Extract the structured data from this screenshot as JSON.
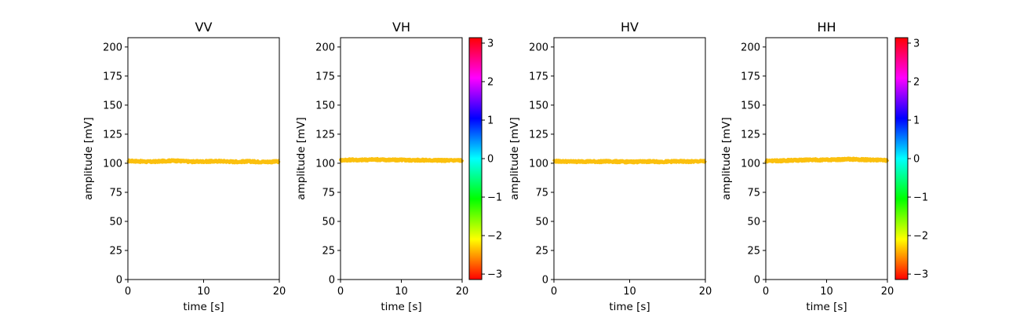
{
  "figure": {
    "background": "#ffffff",
    "trace_color": "#fbc00e"
  },
  "chart_data": [
    {
      "type": "line",
      "title": "VV",
      "xlabel": "time [s]",
      "ylabel": "amplitude [mV]",
      "xlim": [
        0,
        20
      ],
      "ylim": [
        0,
        208
      ],
      "xticks": [
        0,
        10,
        20
      ],
      "yticks": [
        0,
        25,
        50,
        75,
        100,
        125,
        150,
        175,
        200
      ],
      "grid": false,
      "series": [
        {
          "x": [
            0,
            1,
            2,
            3,
            4,
            5,
            6,
            7,
            8,
            9,
            10,
            11,
            12,
            13,
            14,
            15,
            16,
            17,
            18,
            19,
            20
          ],
          "values": [
            102,
            101.8,
            101.5,
            101.3,
            101.6,
            102,
            102.2,
            101.9,
            101.5,
            101.4,
            101.5,
            101.6,
            101.8,
            101.6,
            101.3,
            101.4,
            101.6,
            101.3,
            101.2,
            101.3,
            101.5
          ]
        }
      ]
    },
    {
      "type": "line",
      "title": "VH",
      "xlabel": "time [s]",
      "ylabel": "amplitude [mV]",
      "xlim": [
        0,
        20
      ],
      "ylim": [
        0,
        208
      ],
      "xticks": [
        0,
        10,
        20
      ],
      "yticks": [
        0,
        25,
        50,
        75,
        100,
        125,
        150,
        175,
        200
      ],
      "grid": false,
      "colorbar": {
        "min": -3.14159,
        "max": 3.14159,
        "ticks": [
          3,
          2,
          1,
          0,
          -1,
          -2,
          -3
        ],
        "colormap": "hsv"
      },
      "series": [
        {
          "x": [
            0,
            1,
            2,
            3,
            4,
            5,
            6,
            7,
            8,
            9,
            10,
            11,
            12,
            13,
            14,
            15,
            16,
            17,
            18,
            19,
            20
          ],
          "values": [
            102.6,
            102.8,
            103,
            102.8,
            102.9,
            103.1,
            103.2,
            103,
            102.9,
            102.8,
            102.9,
            102.7,
            102.6,
            102.7,
            102.6,
            102.5,
            102.6,
            102.4,
            102.5,
            102.6,
            102.5
          ]
        }
      ]
    },
    {
      "type": "line",
      "title": "HV",
      "xlabel": "time [s]",
      "ylabel": "amplitude [mV]",
      "xlim": [
        0,
        20
      ],
      "ylim": [
        0,
        208
      ],
      "xticks": [
        0,
        10,
        20
      ],
      "yticks": [
        0,
        25,
        50,
        75,
        100,
        125,
        150,
        175,
        200
      ],
      "grid": false,
      "series": [
        {
          "x": [
            0,
            1,
            2,
            3,
            4,
            5,
            6,
            7,
            8,
            9,
            10,
            11,
            12,
            13,
            14,
            15,
            16,
            17,
            18,
            19,
            20
          ],
          "values": [
            101.8,
            101.6,
            101.5,
            101.4,
            101.6,
            101.5,
            101.4,
            101.6,
            101.5,
            101.3,
            101.2,
            101.3,
            101.4,
            101.5,
            101.3,
            101.4,
            101.6,
            101.5,
            101.4,
            101.6,
            101.7
          ]
        }
      ]
    },
    {
      "type": "line",
      "title": "HH",
      "xlabel": "time [s]",
      "ylabel": "amplitude [mV]",
      "xlim": [
        0,
        20
      ],
      "ylim": [
        0,
        208
      ],
      "xticks": [
        0,
        10,
        20
      ],
      "yticks": [
        0,
        25,
        50,
        75,
        100,
        125,
        150,
        175,
        200
      ],
      "grid": false,
      "colorbar": {
        "min": -3.14159,
        "max": 3.14159,
        "ticks": [
          3,
          2,
          1,
          0,
          -1,
          -2,
          -3
        ],
        "colormap": "hsv"
      },
      "series": [
        {
          "x": [
            0,
            1,
            2,
            3,
            4,
            5,
            6,
            7,
            8,
            9,
            10,
            11,
            12,
            13,
            14,
            15,
            16,
            17,
            18,
            19,
            20
          ],
          "values": [
            102,
            102.2,
            102.1,
            102.3,
            102.5,
            102.6,
            102.7,
            102.9,
            103,
            102.8,
            102.9,
            103.1,
            103.2,
            103.4,
            103.5,
            103.3,
            103.1,
            102.9,
            102.8,
            102.6,
            102.5
          ]
        }
      ]
    }
  ]
}
